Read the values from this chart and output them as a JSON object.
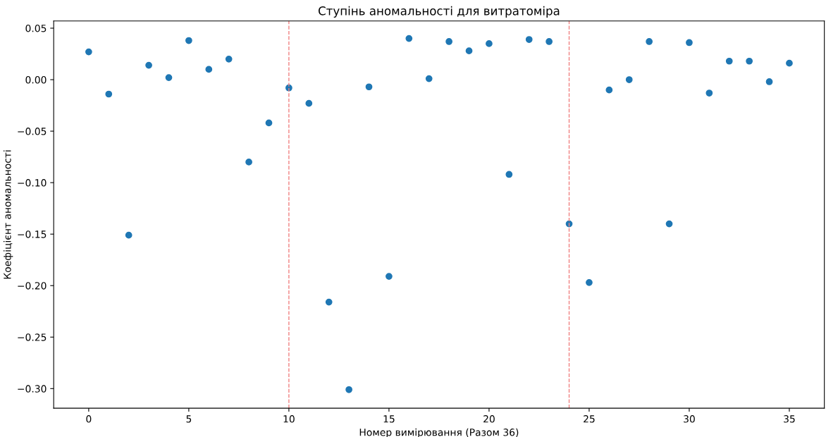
{
  "chart_data": {
    "type": "scatter",
    "title": "Ступінь аномальності для витратоміра",
    "xlabel": "Номер вимірювання (Разом 36)",
    "ylabel": "Коефіцієнт аномальності",
    "x": [
      0,
      1,
      2,
      3,
      4,
      5,
      6,
      7,
      8,
      9,
      10,
      11,
      12,
      13,
      14,
      15,
      16,
      17,
      18,
      19,
      20,
      21,
      22,
      23,
      24,
      25,
      26,
      27,
      28,
      29,
      30,
      31,
      32,
      33,
      34,
      35
    ],
    "series": [
      {
        "color": "#1f77b4",
        "values": [
          0.027,
          -0.014,
          -0.151,
          0.014,
          0.002,
          0.038,
          0.01,
          0.02,
          -0.08,
          -0.042,
          -0.008,
          -0.023,
          -0.216,
          -0.301,
          -0.007,
          -0.191,
          0.04,
          0.001,
          0.037,
          0.028,
          0.035,
          -0.092,
          0.039,
          0.037,
          -0.14,
          -0.197,
          -0.01,
          0.0,
          0.037,
          -0.14,
          0.036,
          -0.013,
          0.018,
          0.018,
          -0.002,
          0.016
        ]
      }
    ],
    "xlim": [
      -1.75,
      36.75
    ],
    "ylim": [
      -0.319,
      0.057
    ],
    "xticks": [
      0,
      5,
      10,
      15,
      20,
      25,
      30,
      35
    ],
    "yticks": [
      {
        "value": 0.05,
        "label": "0.05"
      },
      {
        "value": 0.0,
        "label": "0.00"
      },
      {
        "value": -0.05,
        "label": "−0.05"
      },
      {
        "value": -0.1,
        "label": "−0.10"
      },
      {
        "value": -0.15,
        "label": "−0.15"
      },
      {
        "value": -0.2,
        "label": "−0.20"
      },
      {
        "value": -0.25,
        "label": "−0.25"
      },
      {
        "value": -0.3,
        "label": "−0.30"
      }
    ],
    "ref_lines": [
      {
        "axis": "x",
        "value": 10,
        "color": "#f08080",
        "line_style": "dashed"
      },
      {
        "axis": "x",
        "value": 24,
        "color": "#f08080",
        "line_style": "dashed"
      }
    ],
    "marker": "circle",
    "grid": false,
    "legend": false
  }
}
